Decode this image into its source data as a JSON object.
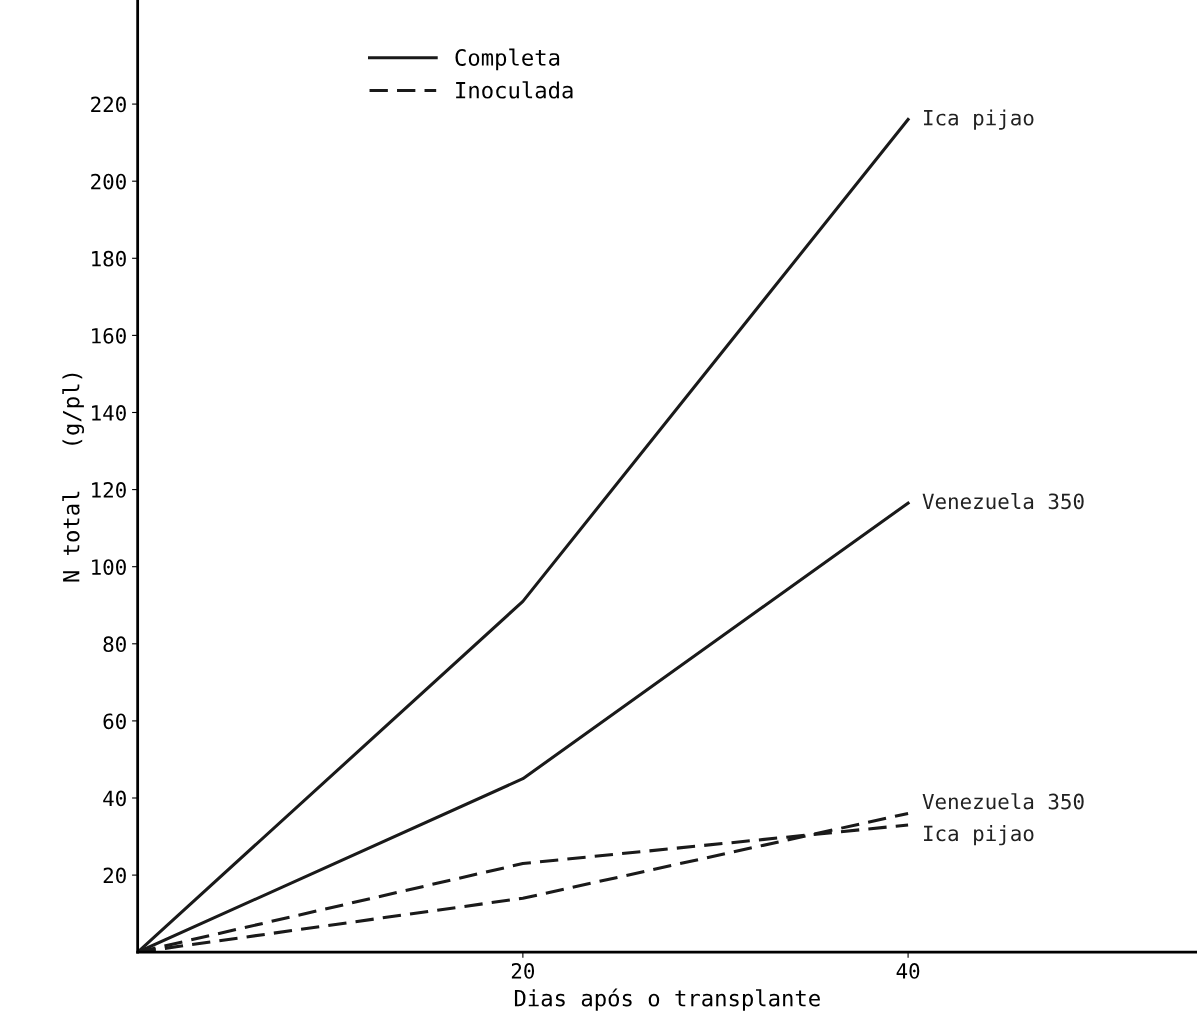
{
  "chart_data": {
    "type": "line",
    "xlabel": "Dias após o transplante",
    "ylabel": "N total   (g/pl)",
    "x": [
      0,
      20,
      40
    ],
    "series": [
      {
        "name": "Completa",
        "color": "#1a1a1a",
        "line_style": "solid",
        "values": [
          0,
          91,
          216
        ]
      },
      {
        "color": "#1a1a1a",
        "line_style": "solid",
        "values": [
          0,
          45,
          116.5
        ]
      },
      {
        "name": "Inoculada",
        "color": "#1a1a1a",
        "line_style": "dashed",
        "values": [
          0,
          14,
          36
        ]
      },
      {
        "color": "#1a1a1a",
        "line_style": "dashed",
        "values": [
          0,
          23,
          33
        ]
      }
    ],
    "annotations": [
      "Ica pijao",
      "Venezuela 350",
      "Venezuela 350",
      "Ica pijao"
    ],
    "xlim": [
      0,
      55
    ],
    "ylim": [
      0,
      247
    ],
    "xticks": [
      20,
      40
    ],
    "yticks": [
      20,
      40,
      60,
      80,
      100,
      120,
      140,
      160,
      180,
      200,
      220
    ],
    "grid": false,
    "legend": "top left",
    "marker": "none"
  }
}
